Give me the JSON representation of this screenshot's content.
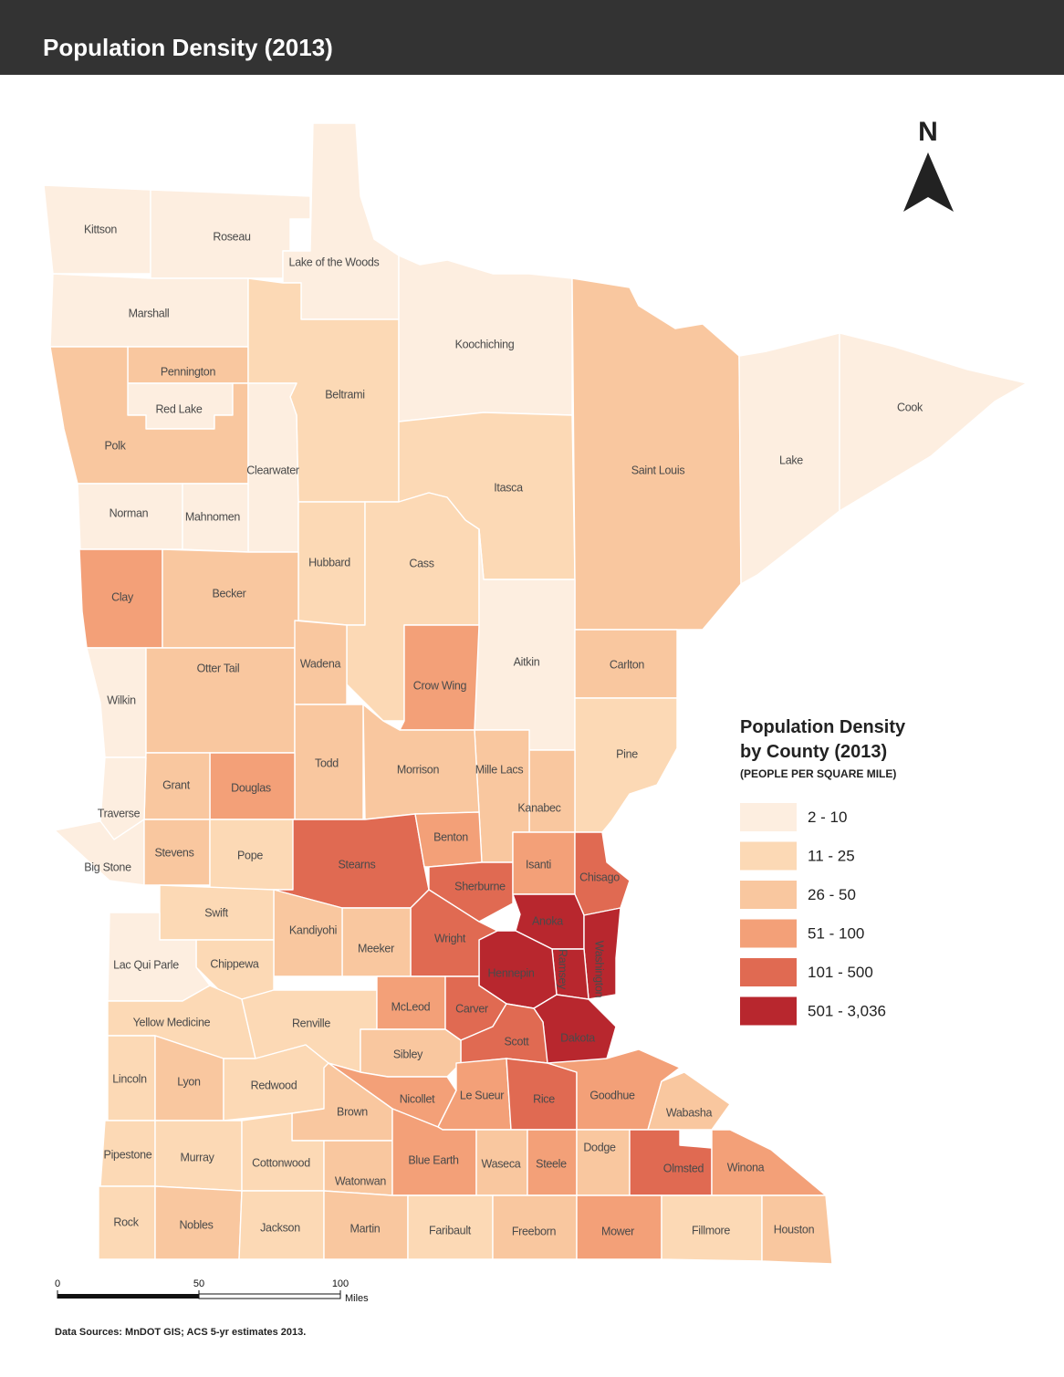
{
  "header": {
    "title": "Population Density (2013)"
  },
  "north_arrow": {
    "label": "N"
  },
  "counties": [
    {
      "name": "Kittson",
      "color": "#fdeee0"
    },
    {
      "name": "Roseau",
      "color": "#fdeee0"
    },
    {
      "name": "Lake of the Woods",
      "color": "#fdeee0"
    },
    {
      "name": "Marshall",
      "color": "#fdeee0"
    },
    {
      "name": "Pennington",
      "color": "#f9c79f"
    },
    {
      "name": "Red Lake",
      "color": "#fdeee0"
    },
    {
      "name": "Polk",
      "color": "#f9c79f"
    },
    {
      "name": "Beltrami",
      "color": "#fcd9b5"
    },
    {
      "name": "Clearwater",
      "color": "#fdeee0"
    },
    {
      "name": "Norman",
      "color": "#fdeee0"
    },
    {
      "name": "Mahnomen",
      "color": "#fdeee0"
    },
    {
      "name": "Koochiching",
      "color": "#fdeee0"
    },
    {
      "name": "Itasca",
      "color": "#fcd9b5"
    },
    {
      "name": "Saint Louis",
      "color": "#f9c79f"
    },
    {
      "name": "Lake",
      "color": "#fdeee0"
    },
    {
      "name": "Cook",
      "color": "#fdeee0"
    },
    {
      "name": "Hubbard",
      "color": "#fcd9b5"
    },
    {
      "name": "Cass",
      "color": "#fcd9b5"
    },
    {
      "name": "Aitkin",
      "color": "#fdeee0"
    },
    {
      "name": "Carlton",
      "color": "#f9c79f"
    },
    {
      "name": "Pine",
      "color": "#fcd9b5"
    },
    {
      "name": "Kanabec",
      "color": "#f9c79f"
    },
    {
      "name": "Mille Lacs",
      "color": "#f9c79f"
    },
    {
      "name": "Clay",
      "color": "#f3a078"
    },
    {
      "name": "Becker",
      "color": "#f9c79f"
    },
    {
      "name": "Wilkin",
      "color": "#fdeee0"
    },
    {
      "name": "Otter Tail",
      "color": "#f9c79f"
    },
    {
      "name": "Wadena",
      "color": "#f9c79f"
    },
    {
      "name": "Crow Wing",
      "color": "#f3a078"
    },
    {
      "name": "Todd",
      "color": "#f9c79f"
    },
    {
      "name": "Morrison",
      "color": "#f9c79f"
    },
    {
      "name": "Douglas",
      "color": "#f3a078"
    },
    {
      "name": "Grant",
      "color": "#f9c79f"
    },
    {
      "name": "Traverse",
      "color": "#fdeee0"
    },
    {
      "name": "Big Stone",
      "color": "#fdeee0"
    },
    {
      "name": "Stevens",
      "color": "#f9c79f"
    },
    {
      "name": "Pope",
      "color": "#fcd9b5"
    },
    {
      "name": "Stearns",
      "color": "#e06a52"
    },
    {
      "name": "Benton",
      "color": "#f3a078"
    },
    {
      "name": "Sherburne",
      "color": "#e06a52"
    },
    {
      "name": "Isanti",
      "color": "#f3a078"
    },
    {
      "name": "Chisago",
      "color": "#e06a52"
    },
    {
      "name": "Anoka",
      "color": "#b8272e"
    },
    {
      "name": "Washington",
      "color": "#b8272e"
    },
    {
      "name": "Ramsey",
      "color": "#b8272e"
    },
    {
      "name": "Hennepin",
      "color": "#b8272e"
    },
    {
      "name": "Dakota",
      "color": "#b8272e"
    },
    {
      "name": "Wright",
      "color": "#e06a52"
    },
    {
      "name": "Meeker",
      "color": "#f9c79f"
    },
    {
      "name": "Kandiyohi",
      "color": "#f9c79f"
    },
    {
      "name": "Swift",
      "color": "#fcd9b5"
    },
    {
      "name": "Chippewa",
      "color": "#fcd9b5"
    },
    {
      "name": "Lac Qui Parle",
      "color": "#fdeee0"
    },
    {
      "name": "Yellow Medicine",
      "color": "#fcd9b5"
    },
    {
      "name": "Renville",
      "color": "#fcd9b5"
    },
    {
      "name": "McLeod",
      "color": "#f3a078"
    },
    {
      "name": "Carver",
      "color": "#e06a52"
    },
    {
      "name": "Scott",
      "color": "#e06a52"
    },
    {
      "name": "Sibley",
      "color": "#f9c79f"
    },
    {
      "name": "Nicollet",
      "color": "#f3a078"
    },
    {
      "name": "Le Sueur",
      "color": "#f3a078"
    },
    {
      "name": "Rice",
      "color": "#e06a52"
    },
    {
      "name": "Goodhue",
      "color": "#f3a078"
    },
    {
      "name": "Wabasha",
      "color": "#f9c79f"
    },
    {
      "name": "Lincoln",
      "color": "#fcd9b5"
    },
    {
      "name": "Lyon",
      "color": "#f9c79f"
    },
    {
      "name": "Redwood",
      "color": "#fcd9b5"
    },
    {
      "name": "Brown",
      "color": "#f9c79f"
    },
    {
      "name": "Pipestone",
      "color": "#fcd9b5"
    },
    {
      "name": "Murray",
      "color": "#fcd9b5"
    },
    {
      "name": "Cottonwood",
      "color": "#fcd9b5"
    },
    {
      "name": "Watonwan",
      "color": "#f9c79f"
    },
    {
      "name": "Blue Earth",
      "color": "#f3a078"
    },
    {
      "name": "Waseca",
      "color": "#f9c79f"
    },
    {
      "name": "Steele",
      "color": "#f3a078"
    },
    {
      "name": "Dodge",
      "color": "#f9c79f"
    },
    {
      "name": "Olmsted",
      "color": "#e06a52"
    },
    {
      "name": "Winona",
      "color": "#f3a078"
    },
    {
      "name": "Rock",
      "color": "#fcd9b5"
    },
    {
      "name": "Nobles",
      "color": "#f9c79f"
    },
    {
      "name": "Jackson",
      "color": "#fcd9b5"
    },
    {
      "name": "Martin",
      "color": "#f9c79f"
    },
    {
      "name": "Faribault",
      "color": "#fcd9b5"
    },
    {
      "name": "Freeborn",
      "color": "#f9c79f"
    },
    {
      "name": "Mower",
      "color": "#f3a078"
    },
    {
      "name": "Fillmore",
      "color": "#fcd9b5"
    },
    {
      "name": "Houston",
      "color": "#f9c79f"
    }
  ],
  "legend": {
    "title_lines": [
      "Population Density",
      "by County (2013)"
    ],
    "subtitle": "(PEOPLE PER SQUARE MILE)",
    "items": [
      {
        "label": "2 - 10",
        "color": "#fdeee0"
      },
      {
        "label": "11 - 25",
        "color": "#fcd9b5"
      },
      {
        "label": "26 - 50",
        "color": "#f9c79f"
      },
      {
        "label": "51 - 100",
        "color": "#f3a078"
      },
      {
        "label": "101 - 500",
        "color": "#e06a52"
      },
      {
        "label": "501 - 3,036",
        "color": "#b8272e"
      }
    ]
  },
  "scale_bar": {
    "ticks": [
      0,
      50,
      100
    ],
    "unit": "Miles"
  },
  "footer": {
    "source": "Data Sources: MnDOT GIS; ACS 5-yr estimates 2013."
  }
}
